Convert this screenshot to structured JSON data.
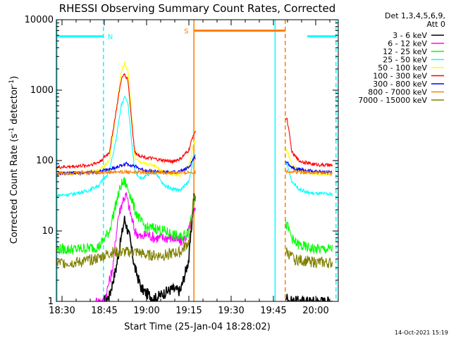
{
  "chart_data": {
    "type": "line",
    "title": "RHESSI Observing Summary Count Rates, Corrected",
    "xlabel": "Start Time (25-Jan-04 18:28:02)",
    "ylabel_main": "Corrected Count Rate (s",
    "ylabel_sup1": "-1",
    "ylabel_mid": " detector",
    "ylabel_sup2": "-1",
    "ylabel_end": ")",
    "yscale": "log",
    "ylim": [
      1,
      10000
    ],
    "xlim": [
      18.4667,
      20.1333
    ],
    "x_ticks": [
      {
        "value": 18.5,
        "label": "18:30"
      },
      {
        "value": 18.75,
        "label": "18:45"
      },
      {
        "value": 19.0,
        "label": "19:00"
      },
      {
        "value": 19.25,
        "label": "19:15"
      },
      {
        "value": 19.5,
        "label": "19:30"
      },
      {
        "value": 19.75,
        "label": "19:45"
      },
      {
        "value": 20.0,
        "label": "20:00"
      }
    ],
    "y_ticks": [
      {
        "value": 1,
        "label": "1"
      },
      {
        "value": 10,
        "label": "10"
      },
      {
        "value": 100,
        "label": "100"
      },
      {
        "value": 1000,
        "label": "1000"
      },
      {
        "value": 10000,
        "label": "10000"
      }
    ],
    "legend_header_1": "Det 1,3,4,5,6,9,",
    "legend_header_2": "Att 0",
    "legend_placement": "right",
    "series": [
      {
        "name": "3 - 6 keV",
        "color": "#000000",
        "x": [
          18.75,
          18.78,
          18.82,
          18.85,
          18.87,
          18.9,
          18.93,
          18.97,
          19.0,
          19.05,
          19.1,
          19.15,
          19.2,
          19.25,
          19.28,
          19.85,
          19.9,
          20.0,
          20.1
        ],
        "y": [
          1,
          1.2,
          3,
          8,
          15,
          8,
          3,
          1.5,
          1.3,
          1.1,
          1.3,
          1.5,
          1.4,
          4,
          30,
          1,
          1,
          1,
          1
        ]
      },
      {
        "name": "6 - 12 keV",
        "color": "#ff00ff",
        "x": [
          18.7,
          18.75,
          18.8,
          18.83,
          18.86,
          18.88,
          18.9,
          18.93,
          18.97,
          19.0,
          19.05,
          19.1,
          19.15,
          19.2,
          19.23,
          19.26,
          19.3
        ],
        "y": [
          1,
          1,
          3,
          15,
          28,
          32,
          20,
          10,
          8,
          9,
          8,
          8,
          8,
          7,
          8,
          12,
          25
        ]
      },
      {
        "name": "12 - 25 keV",
        "color": "#00ff00",
        "x": [
          18.47,
          18.6,
          18.72,
          18.78,
          18.82,
          18.85,
          18.87,
          18.9,
          18.93,
          18.97,
          19.0,
          19.05,
          19.1,
          19.15,
          19.2,
          19.25,
          19.28,
          19.83,
          19.87,
          19.92,
          20.0,
          20.1
        ],
        "y": [
          5.5,
          5.5,
          6,
          10,
          25,
          45,
          50,
          35,
          20,
          13,
          11,
          11,
          10,
          9,
          8,
          10,
          30,
          12,
          7,
          6,
          5.5,
          5.5
        ]
      },
      {
        "name": "25 - 50 keV",
        "color": "#00ffff",
        "x": [
          18.47,
          18.55,
          18.65,
          18.72,
          18.78,
          18.82,
          18.85,
          18.87,
          18.89,
          18.91,
          18.93,
          18.97,
          19.0,
          19.05,
          19.1,
          19.15,
          19.2,
          19.25,
          19.28,
          19.83,
          19.86,
          19.9,
          19.95,
          20.0,
          20.1
        ],
        "y": [
          32,
          33,
          37,
          45,
          70,
          200,
          600,
          800,
          650,
          200,
          70,
          55,
          60,
          70,
          45,
          40,
          38,
          50,
          120,
          90,
          50,
          40,
          35,
          34,
          33
        ]
      },
      {
        "name": "50 - 100 keV",
        "color": "#ffff00",
        "x": [
          18.47,
          18.55,
          18.65,
          18.72,
          18.78,
          18.82,
          18.85,
          18.87,
          18.89,
          18.91,
          18.93,
          18.97,
          19.0,
          19.05,
          19.1,
          19.15,
          19.2,
          19.25,
          19.28,
          19.83,
          19.86,
          19.9,
          19.95,
          20.0,
          20.1
        ],
        "y": [
          65,
          66,
          68,
          72,
          100,
          500,
          1800,
          2400,
          1900,
          500,
          110,
          90,
          90,
          85,
          70,
          65,
          62,
          80,
          180,
          140,
          85,
          72,
          67,
          65,
          64
        ]
      },
      {
        "name": "100 - 300 keV",
        "color": "#ff0000",
        "x": [
          18.47,
          18.55,
          18.65,
          18.72,
          18.78,
          18.82,
          18.85,
          18.87,
          18.89,
          18.91,
          18.93,
          18.97,
          19.0,
          19.05,
          19.1,
          19.15,
          19.2,
          19.25,
          19.28,
          19.83,
          19.86,
          19.9,
          19.95,
          20.0,
          20.1
        ],
        "y": [
          80,
          82,
          85,
          95,
          130,
          500,
          1400,
          1700,
          1400,
          400,
          130,
          115,
          110,
          105,
          100,
          97,
          105,
          140,
          250,
          400,
          130,
          100,
          92,
          88,
          85
        ]
      },
      {
        "name": "300 - 800 keV",
        "color": "#0000ff",
        "x": [
          18.47,
          18.55,
          18.65,
          18.72,
          18.78,
          18.82,
          18.85,
          18.88,
          18.92,
          18.97,
          19.0,
          19.05,
          19.1,
          19.15,
          19.2,
          19.25,
          19.28,
          19.83,
          19.86,
          19.9,
          19.95,
          20.0,
          20.1
        ],
        "y": [
          65,
          66,
          67,
          70,
          75,
          80,
          85,
          90,
          85,
          75,
          72,
          70,
          68,
          68,
          70,
          80,
          110,
          95,
          80,
          75,
          72,
          70,
          68
        ]
      },
      {
        "name": "800 - 7000 keV",
        "color": "#ff7f00",
        "x": [
          18.47,
          18.6,
          18.75,
          18.85,
          19.0,
          19.1,
          19.2,
          19.28,
          19.83,
          19.9,
          20.0,
          20.1
        ],
        "y": [
          66,
          67,
          68,
          69,
          68,
          67,
          67,
          68,
          70,
          69,
          67,
          66
        ]
      },
      {
        "name": "7000 - 15000 keV",
        "color": "#808000",
        "x": [
          18.47,
          18.6,
          18.7,
          18.75,
          18.8,
          18.85,
          18.9,
          18.95,
          19.0,
          19.05,
          19.1,
          19.15,
          19.2,
          19.25,
          19.28,
          19.83,
          19.87,
          19.92,
          20.0,
          20.1
        ],
        "y": [
          3.5,
          3.6,
          4,
          4.5,
          5,
          5,
          5,
          5,
          4.5,
          4.5,
          4.5,
          4.8,
          5,
          7,
          30,
          5,
          4,
          3.8,
          3.6,
          3.5
        ]
      }
    ],
    "annotations": [
      {
        "label": "N",
        "color": "#00ffff",
        "x1": 18.47,
        "x2": 18.745,
        "y": 5800
      },
      {
        "label": "",
        "color": "#00ffff",
        "x1": 19.95,
        "x2": 20.12,
        "y": 5800
      },
      {
        "label": "S",
        "color": "#ff7f00",
        "x1": 19.28,
        "x2": 19.82,
        "y": 7000
      }
    ],
    "vlines": [
      {
        "x": 18.47,
        "color": "#00ffff",
        "style": "solid"
      },
      {
        "x": 18.745,
        "color": "#00ffff",
        "style": "dashed"
      },
      {
        "x": 19.28,
        "color": "#ff7f00",
        "style": "solid"
      },
      {
        "x": 19.82,
        "color": "#ff7f00",
        "style": "dashed"
      },
      {
        "x": 19.76,
        "color": "#00ffff",
        "style": "solid"
      },
      {
        "x": 20.12,
        "color": "#00ffff",
        "style": "dashed"
      }
    ],
    "gaps": [
      [
        19.29,
        19.82
      ]
    ]
  },
  "footer_date": "14-Oct-2021 15:19"
}
